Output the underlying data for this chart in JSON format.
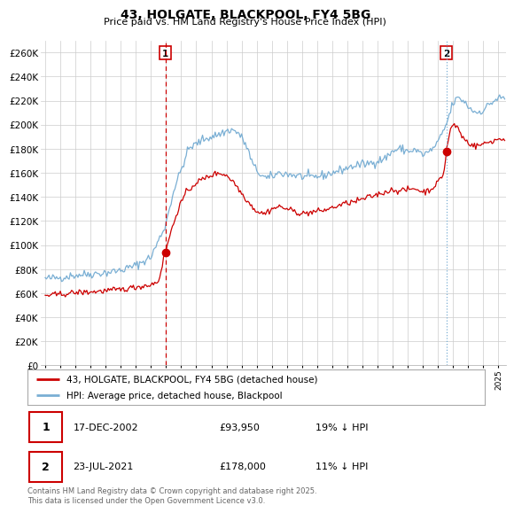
{
  "title": "43, HOLGATE, BLACKPOOL, FY4 5BG",
  "subtitle": "Price paid vs. HM Land Registry's House Price Index (HPI)",
  "ylabel_ticks": [
    0,
    20000,
    40000,
    60000,
    80000,
    100000,
    120000,
    140000,
    160000,
    180000,
    200000,
    220000,
    240000,
    260000
  ],
  "ylim": [
    0,
    270000
  ],
  "xlim": [
    1994.7,
    2025.5
  ],
  "legend_line1": "43, HOLGATE, BLACKPOOL, FY4 5BG (detached house)",
  "legend_line2": "HPI: Average price, detached house, Blackpool",
  "transaction1_date": "17-DEC-2002",
  "transaction1_price": "£93,950",
  "transaction1_hpi": "19% ↓ HPI",
  "transaction1_year": 2002.95,
  "transaction1_value": 93950,
  "transaction2_date": "23-JUL-2021",
  "transaction2_price": "£178,000",
  "transaction2_hpi": "11% ↓ HPI",
  "transaction2_year": 2021.55,
  "transaction2_value": 178000,
  "line_color_red": "#cc0000",
  "line_color_blue": "#7aafd4",
  "vline1_color": "#cc0000",
  "vline1_style": "--",
  "vline2_color": "#7aafd4",
  "vline2_style": ":",
  "background_color": "#ffffff",
  "grid_color": "#cccccc",
  "footer": "Contains HM Land Registry data © Crown copyright and database right 2025.\nThis data is licensed under the Open Government Licence v3.0."
}
